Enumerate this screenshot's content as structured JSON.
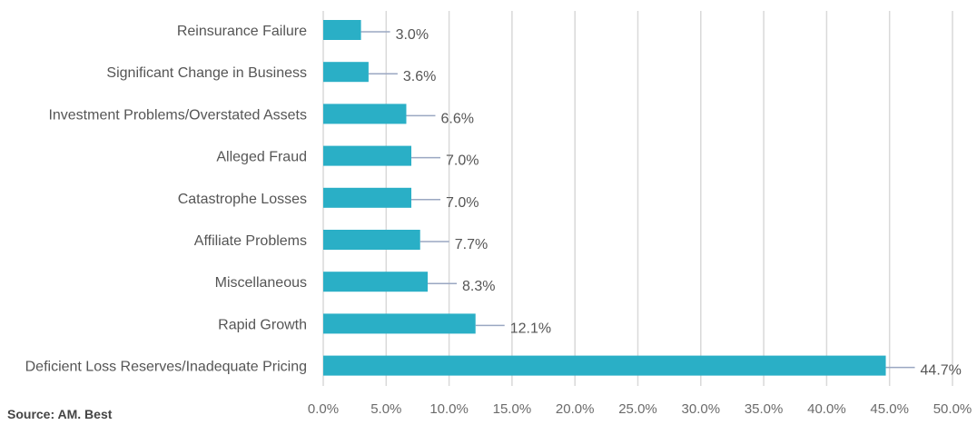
{
  "source_text": "Source: AM. Best",
  "chart_data": {
    "type": "bar",
    "orientation": "horizontal",
    "categories": [
      "Reinsurance Failure",
      "Significant Change in Business",
      "Investment Problems/Overstated Assets",
      "Alleged Fraud",
      "Catastrophe Losses",
      "Affiliate Problems",
      "Miscellaneous",
      "Rapid Growth",
      "Deficient Loss Reserves/Inadequate Pricing"
    ],
    "values": [
      3.0,
      3.6,
      6.6,
      7.0,
      7.0,
      7.7,
      8.3,
      12.1,
      44.7
    ],
    "data_labels": [
      "3.0%",
      "3.6%",
      "6.6%",
      "7.0%",
      "7.0%",
      "7.7%",
      "8.3%",
      "12.1%",
      "44.7%"
    ],
    "x_ticks": [
      "0.0%",
      "5.0%",
      "10.0%",
      "15.0%",
      "20.0%",
      "25.0%",
      "30.0%",
      "35.0%",
      "40.0%",
      "45.0%",
      "50.0%"
    ],
    "xlim": [
      0,
      50
    ],
    "grid": "vertical",
    "bar_color": "#2aafc6",
    "grid_color": "#d9d9d9",
    "leader_color": "#9aa7c2"
  }
}
